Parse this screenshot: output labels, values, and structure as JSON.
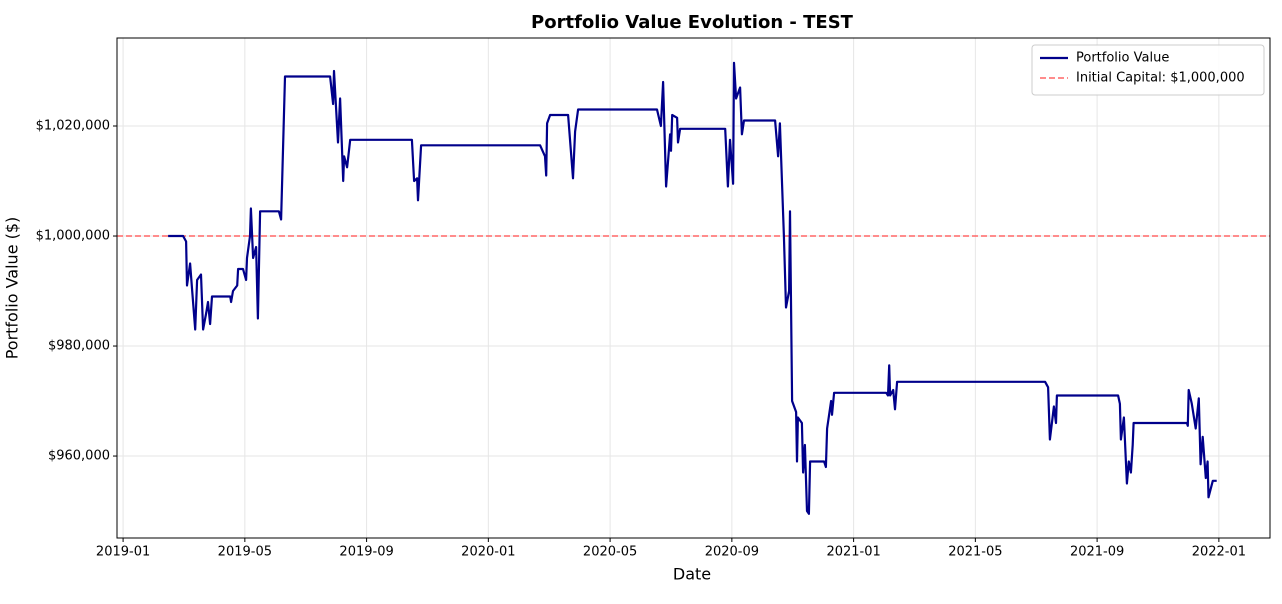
{
  "chart_data": {
    "type": "line",
    "title": "Portfolio Value Evolution - TEST",
    "x_label": "Date",
    "y_label": "Portfolio Value ($)",
    "x": [
      1.48,
      1.97,
      2.07,
      2.1,
      2.2,
      2.27,
      2.37,
      2.43,
      2.56,
      2.63,
      2.73,
      2.79,
      2.86,
      2.92,
      3.52,
      3.55,
      3.61,
      3.75,
      3.78,
      3.94,
      4.04,
      4.07,
      4.17,
      4.2,
      4.27,
      4.37,
      4.43,
      4.5,
      5.12,
      5.19,
      5.32,
      6.8,
      6.9,
      6.93,
      7.06,
      7.13,
      7.23,
      7.26,
      7.36,
      7.46,
      9.49,
      9.56,
      9.66,
      9.69,
      9.79,
      13.7,
      13.86,
      13.9,
      13.93,
      14.03,
      14.62,
      14.78,
      14.85,
      14.95,
      17.54,
      17.67,
      17.74,
      17.84,
      17.97,
      18.0,
      18.04,
      18.2,
      18.23,
      18.3,
      19.78,
      19.87,
      19.94,
      20.04,
      20.07,
      20.14,
      20.27,
      20.33,
      20.4,
      21.42,
      21.52,
      21.58,
      21.71,
      21.78,
      21.88,
      21.91,
      21.98,
      22.11,
      22.14,
      22.17,
      22.3,
      22.34,
      22.4,
      22.47,
      22.53,
      22.57,
      23.03,
      23.09,
      23.13,
      23.26,
      23.29,
      23.36,
      25.07,
      25.13,
      25.17,
      25.2,
      25.3,
      25.36,
      25.43,
      30.29,
      30.39,
      30.45,
      30.58,
      30.65,
      30.68,
      32.69,
      32.75,
      32.78,
      32.88,
      32.98,
      33.04,
      33.11,
      33.17,
      33.2,
      34.95,
      34.98,
      35.01,
      35.11,
      35.24,
      35.34,
      35.4,
      35.47,
      35.57,
      35.63,
      35.66,
      35.8,
      35.93
    ],
    "series": [
      {
        "name": "Portfolio Value",
        "color": "#00008b",
        "values": [
          1000000,
          1000000,
          999000,
          991000,
          995000,
          990000,
          983000,
          992000,
          993000,
          983000,
          986000,
          988000,
          984000,
          989000,
          989000,
          988000,
          990000,
          991000,
          994000,
          994000,
          992000,
          996000,
          1000000,
          1005000,
          996000,
          998000,
          985000,
          1004500,
          1004500,
          1003000,
          1029000,
          1029000,
          1024000,
          1030000,
          1017000,
          1025000,
          1010000,
          1014500,
          1012500,
          1017500,
          1017500,
          1010000,
          1010500,
          1006500,
          1016500,
          1016500,
          1014500,
          1011000,
          1020500,
          1022000,
          1022000,
          1010500,
          1019000,
          1023000,
          1023000,
          1020000,
          1028000,
          1009000,
          1018500,
          1015500,
          1022000,
          1021500,
          1017000,
          1019500,
          1019500,
          1009000,
          1017500,
          1009500,
          1031500,
          1025000,
          1027000,
          1018500,
          1021000,
          1021000,
          1014500,
          1020500,
          1000000,
          987000,
          990000,
          1004500,
          970000,
          968000,
          959000,
          967000,
          966000,
          957000,
          962000,
          950000,
          949500,
          959000,
          959000,
          958000,
          965000,
          970000,
          967500,
          971500,
          971500,
          971000,
          976500,
          971000,
          972000,
          968500,
          973500,
          973500,
          972500,
          963000,
          969000,
          966000,
          971000,
          971000,
          969500,
          963000,
          967000,
          955000,
          959000,
          957000,
          962000,
          966000,
          966000,
          965500,
          972000,
          969500,
          965000,
          970500,
          958500,
          963500,
          956000,
          959000,
          952500,
          955500,
          955500
        ]
      }
    ],
    "reference_lines": [
      {
        "name": "Initial Capital: $1,000,000",
        "value": 1000000,
        "color": "#ff6666"
      }
    ],
    "xlim": [
      -0.2,
      37.68
    ],
    "xticks": [
      {
        "value": 0,
        "label": "2019-01"
      },
      {
        "value": 4,
        "label": "2019-05"
      },
      {
        "value": 8,
        "label": "2019-09"
      },
      {
        "value": 12,
        "label": "2020-01"
      },
      {
        "value": 16,
        "label": "2020-05"
      },
      {
        "value": 20,
        "label": "2020-09"
      },
      {
        "value": 24,
        "label": "2021-01"
      },
      {
        "value": 28,
        "label": "2021-05"
      },
      {
        "value": 32,
        "label": "2021-09"
      },
      {
        "value": 36,
        "label": "2022-01"
      }
    ],
    "ylim": [
      945100,
      1036000
    ],
    "yticks": [
      {
        "value": 960000,
        "label": "$960,000"
      },
      {
        "value": 980000,
        "label": "$980,000"
      },
      {
        "value": 1000000,
        "label": "$1,000,000"
      },
      {
        "value": 1020000,
        "label": "$1,020,000"
      }
    ],
    "grid": true,
    "legend": "upper-right"
  }
}
